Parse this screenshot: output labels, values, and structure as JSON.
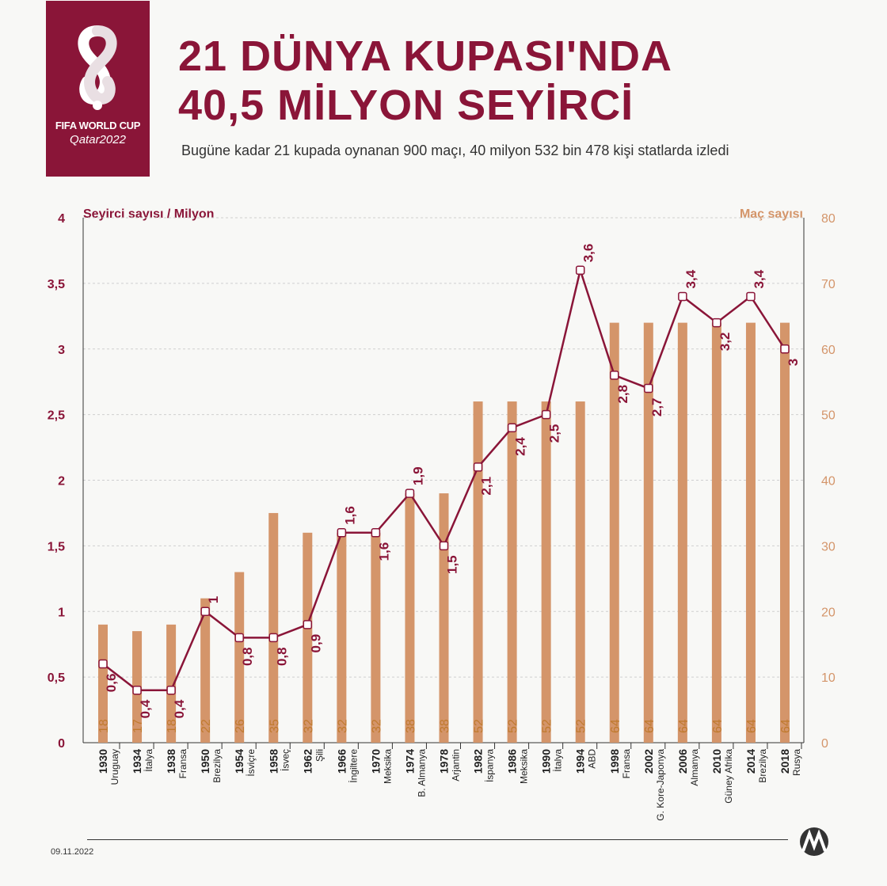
{
  "header": {
    "brand_line1": "FIFA WORLD CUP",
    "brand_line2": "Qatar2022",
    "title_line1": "21 DÜNYA KUPASI'NDA",
    "title_line2": "40,5 MİLYON SEYİRCİ",
    "subtitle": "Bugüne kadar 21 kupada oynanan 900 maçı, 40 milyon 532 bin 478 kişi statlarda izledi"
  },
  "footer": {
    "date": "09.11.2022",
    "agency_logo": "AA"
  },
  "colors": {
    "primary": "#8a1538",
    "bar": "#d4956a",
    "bar_label": "#c07a2e",
    "background": "#f8f8f6"
  },
  "chart_data": {
    "type": "bar",
    "categories": [
      "1930",
      "1934",
      "1938",
      "1950",
      "1954",
      "1958",
      "1962",
      "1966",
      "1970",
      "1974",
      "1978",
      "1982",
      "1986",
      "1990",
      "1994",
      "1998",
      "2002",
      "2006",
      "2010",
      "2014",
      "2018"
    ],
    "hosts": [
      "Uruguay",
      "İtalya",
      "Fransa",
      "Brezilya",
      "İsviçre",
      "İsveç",
      "Şili",
      "İngiltere",
      "Meksika",
      "B. Almanya",
      "Arjantin",
      "İspanya",
      "Meksika",
      "İtalya",
      "ABD",
      "Fransa",
      "G. Kore-Japonya",
      "Almanya",
      "Güney Afrika",
      "Brezilya",
      "Rusya"
    ],
    "series": [
      {
        "name": "Maç sayısı",
        "type": "bar",
        "axis": "right",
        "values": [
          18,
          17,
          18,
          22,
          26,
          35,
          32,
          32,
          32,
          38,
          38,
          52,
          52,
          52,
          52,
          64,
          64,
          64,
          64,
          64,
          64
        ]
      },
      {
        "name": "Seyirci sayısı / Milyon",
        "type": "line",
        "axis": "left",
        "values": [
          0.6,
          0.4,
          0.4,
          1.0,
          0.8,
          0.8,
          0.9,
          1.6,
          1.6,
          1.9,
          1.5,
          2.1,
          2.4,
          2.5,
          3.6,
          2.8,
          2.7,
          3.4,
          3.2,
          3.4,
          3.0
        ],
        "labels": [
          "0,6",
          "0,4",
          "0,4",
          "1",
          "0,8",
          "0,8",
          "0,9",
          "1,6",
          "1,6",
          "1,9",
          "1,5",
          "2,1",
          "2,4",
          "2,5",
          "3,6",
          "2,8",
          "2,7",
          "3,4",
          "3,2",
          "3,4",
          "3"
        ]
      }
    ],
    "left_axis": {
      "title": "Seyirci sayısı / Milyon",
      "ylim": [
        0,
        4
      ],
      "ticks": [
        0,
        0.5,
        1,
        1.5,
        2,
        2.5,
        3,
        3.5,
        4
      ],
      "tick_labels": [
        "0",
        "0,5",
        "1",
        "1,5",
        "2",
        "2,5",
        "3",
        "3,5",
        "4"
      ]
    },
    "right_axis": {
      "title": "Maç sayısı",
      "ylim": [
        0,
        80
      ],
      "ticks": [
        0,
        10,
        20,
        30,
        40,
        50,
        60,
        70,
        80
      ],
      "tick_labels": [
        "0",
        "10",
        "20",
        "30",
        "40",
        "50",
        "60",
        "70",
        "80"
      ]
    },
    "grid": true
  }
}
